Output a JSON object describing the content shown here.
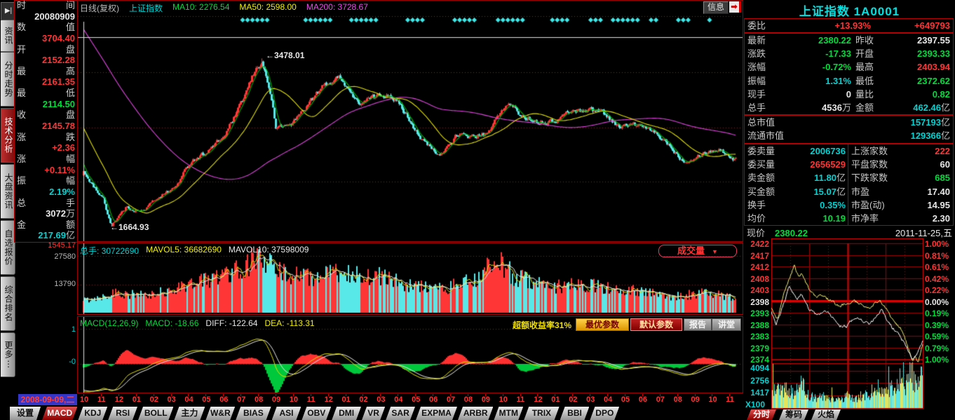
{
  "window": {
    "info_button": "信息",
    "info_icon_glyph": "➡"
  },
  "left_tabs": {
    "collapse_icon": "▶|",
    "items": [
      {
        "label": "资讯",
        "active": false
      },
      {
        "label": "分时走势",
        "active": false
      },
      {
        "label": "技术分析",
        "active": true
      },
      {
        "label": "大盘资讯",
        "active": false
      },
      {
        "label": "自选报价",
        "active": false
      },
      {
        "label": "综合排名",
        "active": false
      },
      {
        "label": "更多⋮",
        "active": false
      }
    ]
  },
  "left_panel": {
    "rows": [
      {
        "c1": "时",
        "c2": "间",
        "value": "20080909",
        "unit": "",
        "color": "white"
      },
      {
        "c1": "数",
        "c2": "值",
        "value": "3704.40",
        "unit": "",
        "color": "red"
      },
      {
        "c1": "开",
        "c2": "盘",
        "value": "2152.28",
        "unit": "",
        "color": "red"
      },
      {
        "c1": "最",
        "c2": "高",
        "value": "2161.35",
        "unit": "",
        "color": "red"
      },
      {
        "c1": "最",
        "c2": "低",
        "value": "2114.50",
        "unit": "",
        "color": "green"
      },
      {
        "c1": "收",
        "c2": "盘",
        "value": "2145.78",
        "unit": "",
        "color": "red"
      },
      {
        "c1": "涨",
        "c2": "跌",
        "value": "+2.36",
        "unit": "",
        "color": "red"
      },
      {
        "c1": "涨",
        "c2": "幅",
        "value": "+0.11%",
        "unit": "",
        "color": "red"
      },
      {
        "c1": "振",
        "c2": "幅",
        "value": "2.19%",
        "unit": "",
        "color": "cyan"
      },
      {
        "c1": "总",
        "c2": "手",
        "value": "3072",
        "unit": "万",
        "color": "white"
      },
      {
        "c1": "金",
        "c2": "额",
        "value": "217.69",
        "unit": "亿",
        "color": "cyan"
      }
    ]
  },
  "axis_labels": {
    "main_bottom": "1545.17",
    "volume": [
      "27580",
      "13790"
    ],
    "macd": [
      "1",
      "-0"
    ]
  },
  "main_chart": {
    "period": "日线(复权)",
    "symbol": "上证指数",
    "ma10": "MA10: 2276.54",
    "ma50": "MA50: 2598.00",
    "ma200": "MA200: 3728.67",
    "peak_label": "←3478.01",
    "trough_label": "←1664.93"
  },
  "volume_pane": {
    "zongshou": "总手: 30722690",
    "mavol5": "MAVOL5: 36682690",
    "mavol10": "MAVOL10: 37598009",
    "selector_label": "成交量",
    "selector_icon": "▼"
  },
  "macd_pane": {
    "formula": "MACD(12,26,9)",
    "macd": "MACD: -18.66",
    "diff": "DIFF: -122.64",
    "dea": "DEA: -113.31",
    "excess": "超额收益率31%",
    "buttons": [
      "最优参数",
      "默认参数",
      "报告",
      "讲堂"
    ]
  },
  "date_axis": {
    "cursor_date": "2008-09-09,二",
    "months": [
      "10",
      "11",
      "12",
      "01",
      "02",
      "03",
      "04",
      "05",
      "06",
      "07",
      "08",
      "09",
      "10",
      "11",
      "12",
      "01",
      "02",
      "03",
      "04",
      "05",
      "06",
      "07",
      "08",
      "09",
      "10",
      "11",
      "12",
      "01",
      "02",
      "03",
      "04",
      "05",
      "06",
      "07",
      "08",
      "09",
      "10",
      "11"
    ]
  },
  "bottom_tabs": {
    "settings": "设置",
    "items": [
      "MACD",
      "KDJ",
      "RSI",
      "BOLL",
      "主力",
      "W&R",
      "BIAS",
      "ASI",
      "OBV",
      "DMI",
      "VR",
      "SAR",
      "EXPMA",
      "ARBR",
      "MTM",
      "TRIX",
      "BBI",
      "DPO"
    ],
    "active": "MACD"
  },
  "right_panel": {
    "title": "上证指数 1A0001",
    "weibi": {
      "label": "委比",
      "value": "+13.93%",
      "value_color": "red",
      "extra": "+649793",
      "extra_color": "red"
    },
    "rows_a": [
      {
        "l": "最新",
        "v": "2380.22",
        "vc": "green",
        "u": "",
        "l2": "昨收",
        "v2": "2397.55",
        "v2c": "white",
        "u2": ""
      },
      {
        "l": "涨跌",
        "v": "-17.33",
        "vc": "green",
        "u": "",
        "l2": "开盘",
        "v2": "2393.33",
        "v2c": "green",
        "u2": ""
      },
      {
        "l": "涨幅",
        "v": "-0.72%",
        "vc": "green",
        "u": "",
        "l2": "最高",
        "v2": "2403.94",
        "v2c": "red",
        "u2": ""
      },
      {
        "l": "振幅",
        "v": "1.31%",
        "vc": "cyan",
        "u": "",
        "l2": "最低",
        "v2": "2372.62",
        "v2c": "green",
        "u2": ""
      },
      {
        "l": "现手",
        "v": "0",
        "vc": "white",
        "u": "",
        "l2": "量比",
        "v2": "0.82",
        "v2c": "green",
        "u2": ""
      },
      {
        "l": "总手",
        "v": "4536",
        "vc": "white",
        "u": "万",
        "l2": "金额",
        "v2": "462.46",
        "v2c": "cyan",
        "u2": "亿"
      }
    ],
    "rows_b": [
      {
        "l": "总市值",
        "v": "157193",
        "vc": "cyan",
        "u": "亿"
      },
      {
        "l": "流通市值",
        "v": "129366",
        "vc": "cyan",
        "u": "亿"
      }
    ],
    "rows_c": [
      {
        "l": "委卖量",
        "v": "2006736",
        "vc": "cyan",
        "u": "",
        "l2": "上涨家数",
        "v2": "222",
        "v2c": "red"
      },
      {
        "l": "委买量",
        "v": "2656529",
        "vc": "red",
        "u": "",
        "l2": "平盘家数",
        "v2": "60",
        "v2c": "white"
      },
      {
        "l": "卖金额",
        "v": "11.80",
        "vc": "cyan",
        "u": "亿",
        "l2": "下跌家数",
        "v2": "685",
        "v2c": "green"
      },
      {
        "l": "买金额",
        "v": "15.07",
        "vc": "cyan",
        "u": "亿",
        "l2": "市盈",
        "v2": "17.40",
        "v2c": "white"
      },
      {
        "l": "换手",
        "v": "0.35%",
        "vc": "cyan",
        "u": "",
        "l2": "市盈(动)",
        "v2": "14.95",
        "v2c": "white"
      },
      {
        "l": "均价",
        "v": "10.19",
        "vc": "green",
        "u": "",
        "l2": "市净率",
        "v2": "2.30",
        "v2c": "white"
      }
    ],
    "xianjia": {
      "label": "现价",
      "value": "2380.22",
      "value_color": "green",
      "date": "2011-11-25,五"
    }
  },
  "right_tabs": {
    "items": [
      "分时",
      "筹码",
      "火焰"
    ],
    "active": "分时"
  },
  "intraday_labels": {
    "prices": [
      "2422",
      "2417",
      "2412",
      "2408",
      "2403",
      "2398",
      "2393",
      "2388",
      "2383",
      "2379",
      "2374"
    ],
    "pcts": [
      "1.00%",
      "0.81%",
      "0.61%",
      "0.42%",
      "0.22%",
      "0.00%",
      "0.19%",
      "0.39%",
      "0.59%",
      "0.79%",
      "1.00%"
    ],
    "vols": [
      "4094",
      "2756",
      "1417"
    ],
    "x100": "X100"
  },
  "chart_data": [
    {
      "type": "candlestick",
      "title": "上证指数 日线(复权) 2008-09 — 2011-11",
      "ylim": [
        1545.17,
        3760
      ],
      "grid_values": [
        3330,
        2735,
        2150
      ],
      "extremes": {
        "high": 3478.01,
        "high_t": 0.273,
        "low": 1664.93,
        "low_t": 0.042
      },
      "cursor": {
        "date": "20080909",
        "pointer_value": 3704.4,
        "open": 2152.28,
        "high": 2161.35,
        "low": 2114.5,
        "close": 2145.78,
        "change": "+2.36",
        "pct": "+0.11%",
        "amplitude": "2.19%",
        "hands": "3072万",
        "amount": "217.69亿",
        "ma10": 2276.54,
        "ma50": 2598.0,
        "ma200": 3728.67,
        "vol_total": 30722690,
        "mavol5": 36682690,
        "mavol10": 37598009,
        "macd": -18.66,
        "diff": -122.64,
        "dea": -113.31
      },
      "price_anchors": [
        [
          0,
          2245
        ],
        [
          0.01,
          2150
        ],
        [
          0.03,
          1960
        ],
        [
          0.042,
          1680
        ],
        [
          0.055,
          1790
        ],
        [
          0.065,
          1871
        ],
        [
          0.09,
          1825
        ],
        [
          0.115,
          1991
        ],
        [
          0.14,
          2082
        ],
        [
          0.165,
          2373
        ],
        [
          0.19,
          2477
        ],
        [
          0.215,
          2632
        ],
        [
          0.24,
          2959
        ],
        [
          0.262,
          3330
        ],
        [
          0.273,
          3450
        ],
        [
          0.285,
          3150
        ],
        [
          0.295,
          2720
        ],
        [
          0.32,
          2779
        ],
        [
          0.345,
          2995
        ],
        [
          0.37,
          3195
        ],
        [
          0.395,
          3277
        ],
        [
          0.42,
          2989
        ],
        [
          0.445,
          3052
        ],
        [
          0.47,
          3109
        ],
        [
          0.495,
          2871
        ],
        [
          0.52,
          2592
        ],
        [
          0.545,
          2420
        ],
        [
          0.57,
          2638
        ],
        [
          0.595,
          2639
        ],
        [
          0.62,
          2656
        ],
        [
          0.64,
          2920
        ],
        [
          0.655,
          2979
        ],
        [
          0.67,
          2860
        ],
        [
          0.695,
          2808
        ],
        [
          0.72,
          2790
        ],
        [
          0.745,
          2905
        ],
        [
          0.77,
          2928
        ],
        [
          0.795,
          2911
        ],
        [
          0.82,
          2743
        ],
        [
          0.845,
          2762
        ],
        [
          0.87,
          2701
        ],
        [
          0.895,
          2567
        ],
        [
          0.92,
          2370
        ],
        [
          0.95,
          2460
        ],
        [
          0.975,
          2500
        ],
        [
          1,
          2385
        ]
      ],
      "volume_anchors": [
        [
          0,
          6000
        ],
        [
          0.05,
          10000
        ],
        [
          0.1,
          8000
        ],
        [
          0.15,
          13000
        ],
        [
          0.2,
          17000
        ],
        [
          0.24,
          22000
        ],
        [
          0.268,
          27000
        ],
        [
          0.3,
          20000
        ],
        [
          0.35,
          17000
        ],
        [
          0.4,
          20000
        ],
        [
          0.45,
          18000
        ],
        [
          0.5,
          13500
        ],
        [
          0.55,
          11500
        ],
        [
          0.6,
          16000
        ],
        [
          0.635,
          26000
        ],
        [
          0.66,
          18000
        ],
        [
          0.72,
          12500
        ],
        [
          0.76,
          14500
        ],
        [
          0.8,
          12000
        ],
        [
          0.85,
          10500
        ],
        [
          0.9,
          8000
        ],
        [
          0.95,
          9500
        ],
        [
          1,
          7500
        ]
      ],
      "vol_ylim": [
        0,
        32500
      ],
      "vol_ticks": [
        27580,
        13790
      ]
    },
    {
      "type": "line",
      "title": "分时 2011-11-25",
      "prev_close": 2397.55,
      "ylim": [
        2372.62,
        2422.48
      ],
      "day_high": 2403.94,
      "day_low": 2372.62,
      "last": 2380.22,
      "series": [
        {
          "name": "price-line",
          "anchors": [
            [
              0,
              2393.3
            ],
            [
              0.03,
              2387.5
            ],
            [
              0.08,
              2396
            ],
            [
              0.12,
              2403.9
            ],
            [
              0.17,
              2398
            ],
            [
              0.2,
              2400.5
            ],
            [
              0.25,
              2394
            ],
            [
              0.3,
              2391.5
            ],
            [
              0.35,
              2393.5
            ],
            [
              0.4,
              2391
            ],
            [
              0.45,
              2387
            ],
            [
              0.5,
              2386.5
            ],
            [
              0.52,
              2389
            ],
            [
              0.56,
              2390.5
            ],
            [
              0.6,
              2389.5
            ],
            [
              0.65,
              2387
            ],
            [
              0.7,
              2391.8
            ],
            [
              0.73,
              2393.5
            ],
            [
              0.76,
              2390
            ],
            [
              0.8,
              2386
            ],
            [
              0.84,
              2383.5
            ],
            [
              0.87,
              2380
            ],
            [
              0.9,
              2377
            ],
            [
              0.93,
              2372.6
            ],
            [
              0.96,
              2374.5
            ],
            [
              1,
              2380.2
            ]
          ]
        },
        {
          "name": "leading-line",
          "anchors": [
            [
              0,
              2394
            ],
            [
              0.04,
              2390
            ],
            [
              0.09,
              2402
            ],
            [
              0.13,
              2409
            ],
            [
              0.15,
              2413
            ],
            [
              0.18,
              2408
            ],
            [
              0.2,
              2409.5
            ],
            [
              0.23,
              2405
            ],
            [
              0.27,
              2401
            ],
            [
              0.3,
              2398.5
            ],
            [
              0.33,
              2400.5
            ],
            [
              0.36,
              2399
            ],
            [
              0.4,
              2397.5
            ],
            [
              0.45,
              2395.5
            ],
            [
              0.5,
              2396.5
            ],
            [
              0.55,
              2397.5
            ],
            [
              0.6,
              2396
            ],
            [
              0.65,
              2394.5
            ],
            [
              0.68,
              2396.5
            ],
            [
              0.72,
              2397.8
            ],
            [
              0.75,
              2395
            ],
            [
              0.8,
              2390
            ],
            [
              0.85,
              2386
            ],
            [
              0.88,
              2382
            ],
            [
              0.91,
              2376
            ],
            [
              0.935,
              2371.5
            ],
            [
              0.95,
              2374
            ],
            [
              0.97,
              2371
            ],
            [
              1,
              2379.5
            ]
          ]
        }
      ],
      "volume_anchors": [
        [
          0,
          2600
        ],
        [
          0.05,
          1800
        ],
        [
          0.1,
          2300
        ],
        [
          0.15,
          1500
        ],
        [
          0.2,
          2600
        ],
        [
          0.25,
          1300
        ],
        [
          0.3,
          1100
        ],
        [
          0.35,
          1400
        ],
        [
          0.4,
          1000
        ],
        [
          0.45,
          900
        ],
        [
          0.5,
          1300
        ],
        [
          0.55,
          1000
        ],
        [
          0.6,
          1200
        ],
        [
          0.65,
          1600
        ],
        [
          0.7,
          2700
        ],
        [
          0.75,
          1500
        ],
        [
          0.8,
          2300
        ],
        [
          0.85,
          3400
        ],
        [
          0.88,
          2000
        ],
        [
          0.92,
          4300
        ],
        [
          0.95,
          2600
        ],
        [
          1,
          4900
        ]
      ],
      "vol_ylim": [
        0,
        5100
      ],
      "vol_ticks": [
        4094,
        2756,
        1417
      ]
    }
  ]
}
